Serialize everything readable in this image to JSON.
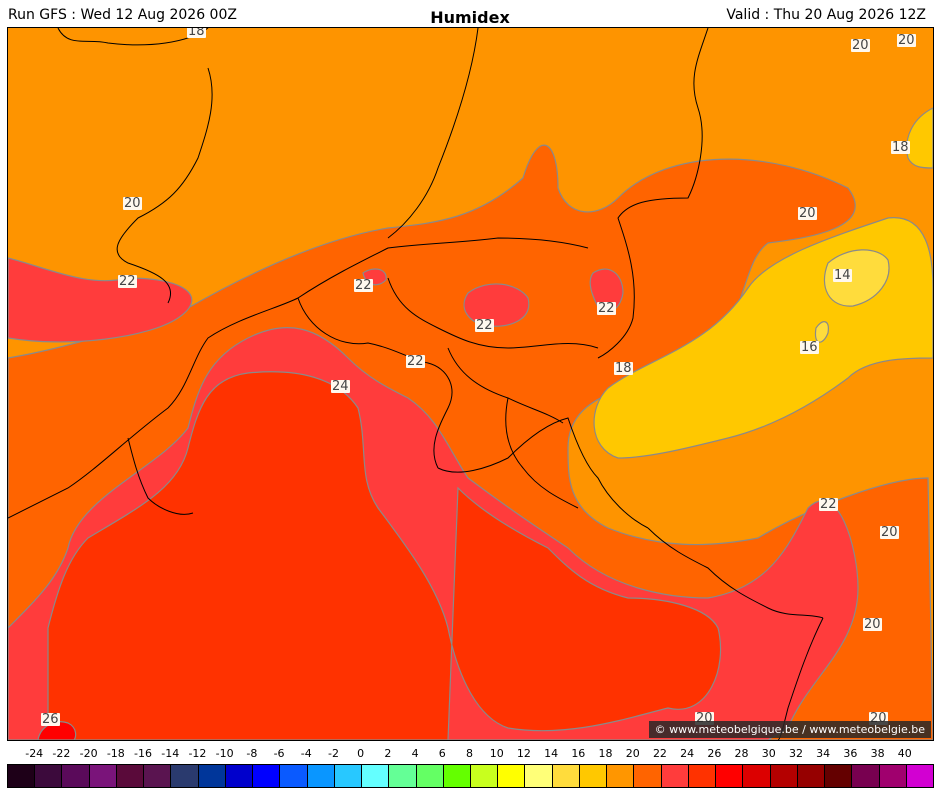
{
  "header": {
    "run": "Run GFS : Wed 12 Aug 2026 00Z",
    "title": "Humidex",
    "valid": "Valid : Thu 20 Aug 2026 12Z"
  },
  "map": {
    "contour_labels": [
      {
        "text": "18"
      },
      {
        "text": "20"
      },
      {
        "text": "20"
      },
      {
        "text": "20"
      },
      {
        "text": "18"
      },
      {
        "text": "20"
      },
      {
        "text": "22"
      },
      {
        "text": "22"
      },
      {
        "text": "22"
      },
      {
        "text": "22"
      },
      {
        "text": "14"
      },
      {
        "text": "22"
      },
      {
        "text": "16"
      },
      {
        "text": "18"
      },
      {
        "text": "24"
      },
      {
        "text": "22"
      },
      {
        "text": "20"
      },
      {
        "text": "20"
      },
      {
        "text": "20"
      },
      {
        "text": "20"
      },
      {
        "text": "26"
      }
    ],
    "credit": "© www.meteobelgique.be / www.meteobelgie.be"
  },
  "legend": {
    "ticks": [
      "-24",
      "-22",
      "-20",
      "-18",
      "-16",
      "-14",
      "-12",
      "-10",
      "-8",
      "-6",
      "-4",
      "-2",
      "0",
      "2",
      "4",
      "6",
      "8",
      "10",
      "12",
      "14",
      "16",
      "18",
      "20",
      "22",
      "24",
      "26",
      "28",
      "30",
      "32",
      "34",
      "36",
      "38",
      "40"
    ],
    "colors": [
      "#1e0018",
      "#3c0a3c",
      "#5a0a5a",
      "#7a147a",
      "#5a0a3a",
      "#5a1450",
      "#2a3a6e",
      "#00369a",
      "#0000cc",
      "#0000ff",
      "#0a5aff",
      "#0a96ff",
      "#28c8ff",
      "#64ffff",
      "#64ff96",
      "#64ff64",
      "#64ff00",
      "#c8ff1e",
      "#ffff00",
      "#ffff78",
      "#ffdc3c",
      "#ffc800",
      "#ff9600",
      "#ff6400",
      "#ff3c3c",
      "#ff3200",
      "#ff0000",
      "#dc0000",
      "#b40000",
      "#960000",
      "#640000",
      "#780050",
      "#a0006e",
      "#d200d2"
    ]
  }
}
